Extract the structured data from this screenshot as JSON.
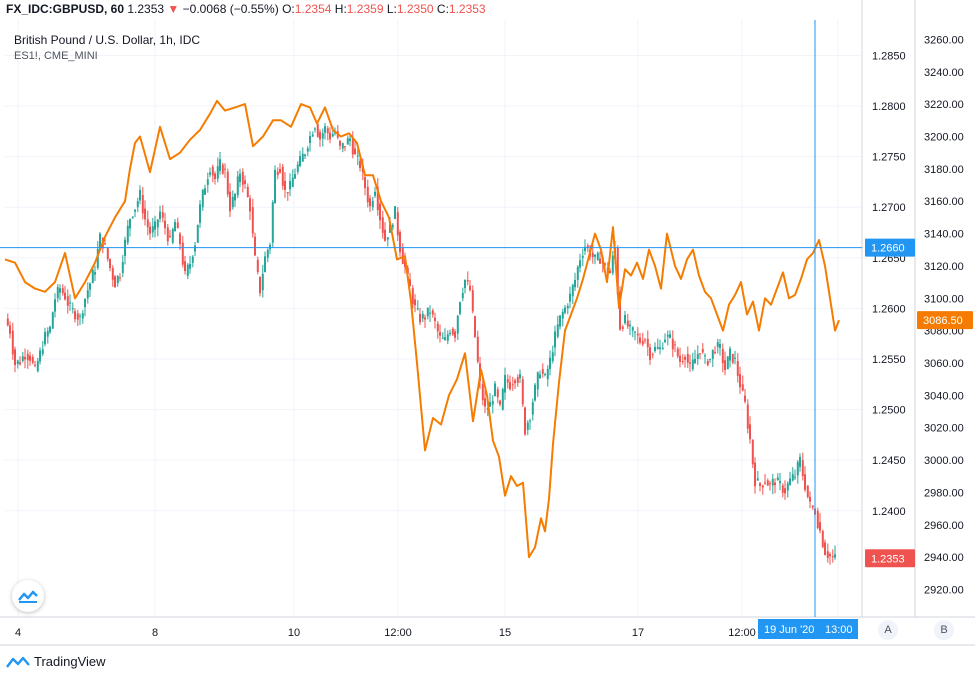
{
  "header": {
    "symbol": "FX_IDC:GBPUSD, 60",
    "last": "1.2353",
    "change_arrow": "▼",
    "change": "−0.0068 (−0.55%)",
    "o_label": "O:",
    "o_value": "1.2354",
    "h_label": "H:",
    "h_value": "1.2359",
    "l_label": "L:",
    "l_value": "1.2350",
    "c_label": "C:",
    "c_value": "1.2353"
  },
  "legend": {
    "main_title": "British Pound / U.S. Dollar, 1h, IDC",
    "overlay_title": "ES1!, CME_MINI"
  },
  "footer": {
    "brand": "TradingView",
    "logo_icon": "tradingview-logo-icon"
  },
  "scale_buttons": {
    "a": "A",
    "b": "B"
  },
  "colors": {
    "up": "#26a69a",
    "down": "#ef5350",
    "overlay": "#f57c00",
    "crosshair": "#2196f3",
    "grid": "#f0f3fa",
    "axis_text": "#131722"
  },
  "chart_data": {
    "type": "candlestick",
    "title": "British Pound / U.S. Dollar, 1h, IDC",
    "x_tick_labels": [
      "4",
      "8",
      "10",
      "12:00",
      "15",
      "17",
      "12:00",
      "13:00"
    ],
    "crosshair": {
      "x_label": "19 Jun '20",
      "x_label_time": "13:00",
      "y_label": "1.2660"
    },
    "left_axis": {
      "name": "GBPUSD",
      "ylim": [
        1.2295,
        1.2885
      ],
      "ticks": [
        "1.2850",
        "1.2800",
        "1.2750",
        "1.2700",
        "1.2650",
        "1.2600",
        "1.2550",
        "1.2500",
        "1.2450",
        "1.2400"
      ],
      "last_value_label": "1.2353",
      "last_value": 1.2353
    },
    "right_axis": {
      "name": "ES1!",
      "ylim": [
        2903,
        3272
      ],
      "ticks": [
        "3260.00",
        "3240.00",
        "3220.00",
        "3200.00",
        "3180.00",
        "3160.00",
        "3140.00",
        "3120.00",
        "3100.00",
        "3080.00",
        "3060.00",
        "3040.00",
        "3020.00",
        "3000.00",
        "2980.00",
        "2960.00",
        "2940.00",
        "2920.00"
      ],
      "last_value_label": "3086.50",
      "last_value": 3086.5
    },
    "series": [
      {
        "name": "GBPUSD",
        "kind": "close_path",
        "bars": 300,
        "values": [
          [
            0,
            1.259
          ],
          [
            5,
            1.2578
          ],
          [
            10,
            1.2545
          ],
          [
            15,
            1.2548
          ],
          [
            20,
            1.2555
          ],
          [
            25,
            1.2552
          ],
          [
            30,
            1.2538
          ],
          [
            35,
            1.2555
          ],
          [
            40,
            1.2572
          ],
          [
            45,
            1.258
          ],
          [
            50,
            1.261
          ],
          [
            55,
            1.262
          ],
          [
            60,
            1.2612
          ],
          [
            65,
            1.26
          ],
          [
            70,
            1.2595
          ],
          [
            75,
            1.259
          ],
          [
            80,
            1.261
          ],
          [
            85,
            1.2625
          ],
          [
            90,
            1.264
          ],
          [
            95,
            1.267
          ],
          [
            100,
            1.266
          ],
          [
            105,
            1.264
          ],
          [
            110,
            1.2625
          ],
          [
            115,
            1.2635
          ],
          [
            120,
            1.2665
          ],
          [
            125,
            1.269
          ],
          [
            130,
            1.27
          ],
          [
            135,
            1.2712
          ],
          [
            140,
            1.2688
          ],
          [
            145,
            1.2675
          ],
          [
            150,
            1.268
          ],
          [
            155,
            1.2695
          ],
          [
            160,
            1.268
          ],
          [
            165,
            1.2665
          ],
          [
            170,
            1.2685
          ],
          [
            175,
            1.2665
          ],
          [
            180,
            1.2632
          ],
          [
            185,
            1.2645
          ],
          [
            190,
            1.2665
          ],
          [
            195,
            1.27
          ],
          [
            200,
            1.2722
          ],
          [
            205,
            1.274
          ],
          [
            210,
            1.2728
          ],
          [
            215,
            1.2742
          ],
          [
            220,
            1.2735
          ],
          [
            225,
            1.27
          ],
          [
            230,
            1.2712
          ],
          [
            235,
            1.2735
          ],
          [
            240,
            1.272
          ],
          [
            245,
            1.27
          ],
          [
            250,
            1.2648
          ],
          [
            255,
            1.2618
          ],
          [
            260,
            1.265
          ],
          [
            265,
            1.2665
          ],
          [
            270,
            1.2735
          ],
          [
            275,
            1.274
          ],
          [
            280,
            1.2715
          ],
          [
            285,
            1.272
          ],
          [
            290,
            1.2735
          ],
          [
            295,
            1.2745
          ],
          [
            300,
            1.2755
          ],
          [
            305,
            1.277
          ],
          [
            310,
            1.2782
          ],
          [
            315,
            1.2768
          ],
          [
            320,
            1.2778
          ],
          [
            325,
            1.277
          ],
          [
            330,
            1.2775
          ],
          [
            335,
            1.2758
          ],
          [
            340,
            1.2762
          ],
          [
            345,
            1.2768
          ],
          [
            350,
            1.275
          ],
          [
            355,
            1.2742
          ],
          [
            360,
            1.272
          ],
          [
            365,
            1.27
          ],
          [
            370,
            1.272
          ],
          [
            375,
            1.269
          ],
          [
            380,
            1.2668
          ],
          [
            385,
            1.268
          ],
          [
            390,
            1.2695
          ],
          [
            395,
            1.266
          ],
          [
            400,
            1.264
          ],
          [
            405,
            1.262
          ],
          [
            410,
            1.26
          ],
          [
            415,
            1.259
          ],
          [
            420,
            1.2592
          ],
          [
            425,
            1.2598
          ],
          [
            430,
            1.2585
          ],
          [
            435,
            1.257
          ],
          [
            440,
            1.2568
          ],
          [
            445,
            1.258
          ],
          [
            450,
            1.2575
          ],
          [
            455,
            1.261
          ],
          [
            460,
            1.2628
          ],
          [
            465,
            1.2618
          ],
          [
            470,
            1.2572
          ],
          [
            475,
            1.2525
          ],
          [
            480,
            1.25
          ],
          [
            485,
            1.2505
          ],
          [
            490,
            1.252
          ],
          [
            495,
            1.25
          ],
          [
            500,
            1.253
          ],
          [
            505,
            1.2525
          ],
          [
            510,
            1.2532
          ],
          [
            515,
            1.253
          ],
          [
            520,
            1.248
          ],
          [
            525,
            1.2495
          ],
          [
            530,
            1.252
          ],
          [
            535,
            1.254
          ],
          [
            540,
            1.253
          ],
          [
            545,
            1.2548
          ],
          [
            550,
            1.2572
          ],
          [
            555,
            1.259
          ],
          [
            560,
            1.26
          ],
          [
            565,
            1.2612
          ],
          [
            570,
            1.2628
          ],
          [
            575,
            1.265
          ],
          [
            580,
            1.2662
          ],
          [
            585,
            1.2655
          ],
          [
            590,
            1.2648
          ],
          [
            595,
            1.265
          ],
          [
            600,
            1.264
          ],
          [
            605,
            1.2635
          ],
          [
            610,
            1.266
          ],
          [
            615,
            1.2582
          ],
          [
            620,
            1.2588
          ],
          [
            625,
            1.2578
          ],
          [
            630,
            1.2575
          ],
          [
            635,
            1.2568
          ],
          [
            640,
            1.257
          ],
          [
            645,
            1.2555
          ],
          [
            650,
            1.256
          ],
          [
            655,
            1.256
          ],
          [
            660,
            1.2572
          ],
          [
            665,
            1.257
          ],
          [
            670,
            1.256
          ],
          [
            675,
            1.2548
          ],
          [
            680,
            1.2555
          ],
          [
            685,
            1.254
          ],
          [
            690,
            1.255
          ],
          [
            695,
            1.256
          ],
          [
            700,
            1.2548
          ],
          [
            705,
            1.255
          ],
          [
            710,
            1.2562
          ],
          [
            715,
            1.256
          ],
          [
            720,
            1.254
          ],
          [
            725,
            1.2555
          ],
          [
            730,
            1.2548
          ],
          [
            735,
            1.2525
          ],
          [
            740,
            1.2505
          ],
          [
            745,
            1.247
          ],
          [
            750,
            1.243
          ],
          [
            755,
            1.2425
          ],
          [
            760,
            1.243
          ],
          [
            765,
            1.2425
          ],
          [
            770,
            1.243
          ],
          [
            775,
            1.2425
          ],
          [
            780,
            1.242
          ],
          [
            785,
            1.243
          ],
          [
            790,
            1.2435
          ],
          [
            795,
            1.245
          ],
          [
            800,
            1.2425
          ],
          [
            805,
            1.2405
          ],
          [
            810,
            1.24
          ],
          [
            815,
            1.238
          ],
          [
            820,
            1.236
          ],
          [
            825,
            1.2355
          ],
          [
            830,
            1.2353
          ]
        ]
      },
      {
        "name": "ES1!",
        "kind": "line",
        "axis": "right",
        "values": [
          [
            0,
            3124
          ],
          [
            10,
            3122
          ],
          [
            20,
            3110
          ],
          [
            30,
            3106
          ],
          [
            40,
            3104
          ],
          [
            50,
            3110
          ],
          [
            60,
            3128
          ],
          [
            70,
            3100
          ],
          [
            80,
            3110
          ],
          [
            90,
            3122
          ],
          [
            100,
            3138
          ],
          [
            110,
            3150
          ],
          [
            120,
            3160
          ],
          [
            125,
            3180
          ],
          [
            130,
            3196
          ],
          [
            135,
            3200
          ],
          [
            145,
            3178
          ],
          [
            155,
            3206
          ],
          [
            165,
            3186
          ],
          [
            175,
            3190
          ],
          [
            185,
            3198
          ],
          [
            195,
            3204
          ],
          [
            205,
            3214
          ],
          [
            212,
            3222
          ],
          [
            220,
            3216
          ],
          [
            230,
            3218
          ],
          [
            240,
            3220
          ],
          [
            248,
            3194
          ],
          [
            258,
            3200
          ],
          [
            268,
            3210
          ],
          [
            276,
            3210
          ],
          [
            286,
            3206
          ],
          [
            296,
            3220
          ],
          [
            305,
            3218
          ],
          [
            312,
            3208
          ],
          [
            320,
            3218
          ],
          [
            328,
            3204
          ],
          [
            336,
            3200
          ],
          [
            344,
            3202
          ],
          [
            352,
            3196
          ],
          [
            360,
            3176
          ],
          [
            368,
            3176
          ],
          [
            376,
            3160
          ],
          [
            384,
            3150
          ],
          [
            392,
            3124
          ],
          [
            400,
            3126
          ],
          [
            406,
            3098
          ],
          [
            412,
            3060
          ],
          [
            420,
            3006
          ],
          [
            428,
            3026
          ],
          [
            436,
            3022
          ],
          [
            444,
            3040
          ],
          [
            452,
            3050
          ],
          [
            460,
            3066
          ],
          [
            468,
            3024
          ],
          [
            476,
            3056
          ],
          [
            482,
            3040
          ],
          [
            488,
            3012
          ],
          [
            494,
            3002
          ],
          [
            500,
            2978
          ],
          [
            506,
            2990
          ],
          [
            512,
            2984
          ],
          [
            518,
            2986
          ],
          [
            524,
            2940
          ],
          [
            530,
            2946
          ],
          [
            536,
            2964
          ],
          [
            540,
            2956
          ],
          [
            544,
            2976
          ],
          [
            548,
            3010
          ],
          [
            554,
            3048
          ],
          [
            560,
            3080
          ],
          [
            566,
            3090
          ],
          [
            572,
            3100
          ],
          [
            578,
            3112
          ],
          [
            584,
            3126
          ],
          [
            590,
            3140
          ],
          [
            596,
            3130
          ],
          [
            602,
            3110
          ],
          [
            608,
            3144
          ],
          [
            614,
            3094
          ],
          [
            620,
            3118
          ],
          [
            626,
            3114
          ],
          [
            632,
            3122
          ],
          [
            638,
            3112
          ],
          [
            644,
            3130
          ],
          [
            650,
            3120
          ],
          [
            656,
            3106
          ],
          [
            662,
            3140
          ],
          [
            670,
            3120
          ],
          [
            676,
            3112
          ],
          [
            682,
            3124
          ],
          [
            688,
            3130
          ],
          [
            694,
            3114
          ],
          [
            700,
            3104
          ],
          [
            706,
            3100
          ],
          [
            712,
            3090
          ],
          [
            718,
            3080
          ],
          [
            724,
            3096
          ],
          [
            730,
            3102
          ],
          [
            736,
            3110
          ],
          [
            742,
            3090
          ],
          [
            748,
            3098
          ],
          [
            754,
            3080
          ],
          [
            760,
            3100
          ],
          [
            766,
            3096
          ],
          [
            772,
            3106
          ],
          [
            778,
            3116
          ],
          [
            784,
            3100
          ],
          [
            790,
            3102
          ],
          [
            796,
            3112
          ],
          [
            802,
            3124
          ],
          [
            808,
            3128
          ],
          [
            814,
            3136
          ],
          [
            820,
            3120
          ],
          [
            826,
            3096
          ],
          [
            830,
            3080
          ],
          [
            834,
            3086.5
          ]
        ]
      }
    ],
    "grid": true,
    "legend_position": "top-left"
  }
}
